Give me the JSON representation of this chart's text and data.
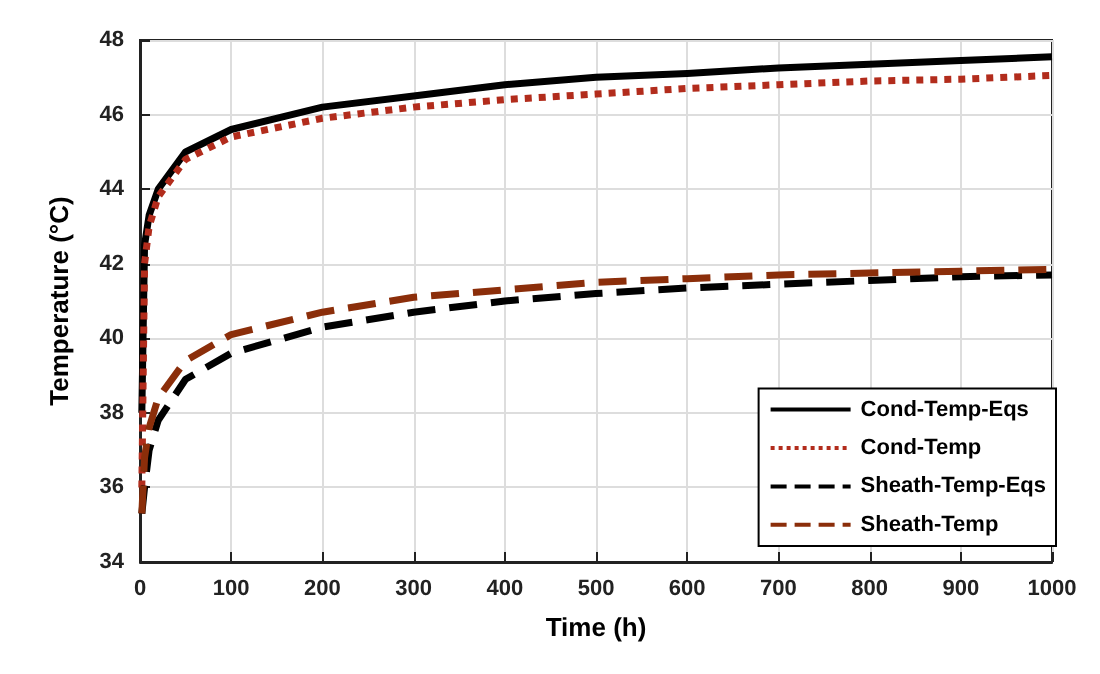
{
  "chart_data": {
    "type": "line",
    "xlabel": "Time (h)",
    "ylabel": "Temperature (°C)",
    "xlim": [
      0,
      1000
    ],
    "xticks": [
      0,
      100,
      200,
      300,
      400,
      500,
      600,
      700,
      800,
      900,
      1000
    ],
    "ylim": [
      34,
      48
    ],
    "yticks": [
      34,
      36,
      38,
      40,
      42,
      44,
      46,
      48
    ],
    "grid": true,
    "legend": "bottom right",
    "marker": "none",
    "x": [
      2,
      5,
      10,
      20,
      50,
      100,
      200,
      300,
      400,
      500,
      600,
      700,
      800,
      900,
      1000
    ],
    "series": [
      {
        "name": "Cond-Temp-Eqs",
        "color": "#000000",
        "line_style": "solid",
        "values": [
          38,
          42.5,
          43.3,
          44,
          45,
          45.6,
          46.2,
          46.5,
          46.8,
          47,
          47.1,
          47.25,
          47.35,
          47.45,
          47.55
        ]
      },
      {
        "name": "Cond-Temp",
        "color": "#b22c1c",
        "line_style": "dotted",
        "values": [
          36,
          42,
          43,
          43.8,
          44.8,
          45.4,
          45.9,
          46.2,
          46.4,
          46.55,
          46.7,
          46.8,
          46.9,
          46.95,
          47.05
        ]
      },
      {
        "name": "Sheath-Temp-Eqs",
        "color": "#000000",
        "line_style": "dashed",
        "values": [
          35.3,
          36,
          37,
          37.8,
          38.9,
          39.6,
          40.3,
          40.7,
          41,
          41.2,
          41.35,
          41.45,
          41.55,
          41.65,
          41.7
        ]
      },
      {
        "name": "Sheath-Temp",
        "color": "#8b2e0a",
        "line_style": "dashed",
        "values": [
          35.3,
          36.8,
          37.6,
          38.4,
          39.4,
          40.1,
          40.7,
          41.1,
          41.3,
          41.5,
          41.6,
          41.7,
          41.75,
          41.8,
          41.85
        ]
      }
    ]
  }
}
